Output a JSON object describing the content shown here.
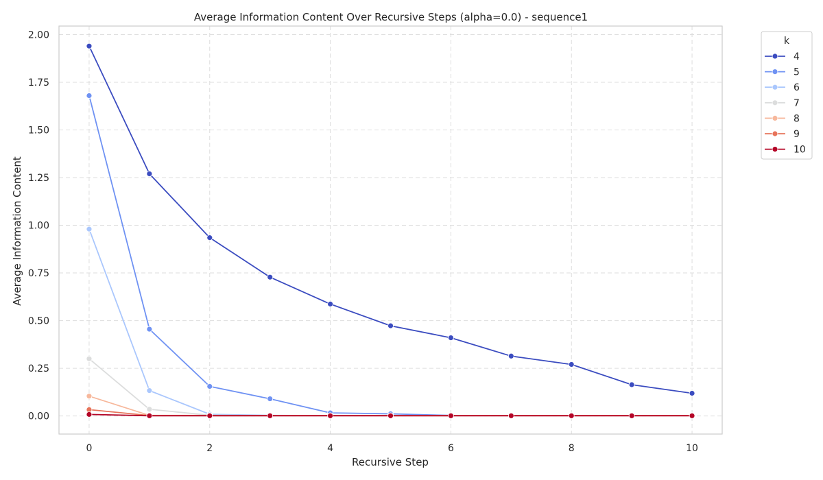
{
  "chart_data": {
    "type": "line",
    "title": "Average Information Content Over Recursive Steps (alpha=0.0) - sequence1",
    "xlabel": "Recursive Step",
    "ylabel": "Average Information Content",
    "xlim": [
      -0.5,
      10.5
    ],
    "ylim": [
      -0.095,
      2.045
    ],
    "x_ticks": [
      0,
      2,
      4,
      6,
      8,
      10
    ],
    "y_ticks": [
      0.0,
      0.25,
      0.5,
      0.75,
      1.0,
      1.25,
      1.5,
      1.75,
      2.0
    ],
    "y_tick_labels": [
      "0.00",
      "0.25",
      "0.50",
      "0.75",
      "1.00",
      "1.25",
      "1.50",
      "1.75",
      "2.00"
    ],
    "grid": true,
    "legend": {
      "title": "k",
      "placement": "outside-top-right"
    },
    "x": [
      0,
      1,
      2,
      3,
      4,
      5,
      6,
      7,
      8,
      9,
      10
    ],
    "series": [
      {
        "name": "4",
        "color": "#3b4cc0",
        "values": [
          1.94,
          1.27,
          0.935,
          0.728,
          0.587,
          0.473,
          0.41,
          0.314,
          0.27,
          0.164,
          0.119
        ]
      },
      {
        "name": "5",
        "color": "#6f92f3",
        "values": [
          1.68,
          0.455,
          0.155,
          0.09,
          0.016,
          0.011,
          0.003,
          0.002,
          0.002,
          0.002,
          0.002
        ]
      },
      {
        "name": "6",
        "color": "#aac7fd",
        "values": [
          0.98,
          0.133,
          0.009,
          0.003,
          0.002,
          0.002,
          0.002,
          0.002,
          0.002,
          0.002,
          0.002
        ]
      },
      {
        "name": "7",
        "color": "#dcdddd",
        "values": [
          0.3,
          0.035,
          0.004,
          0.002,
          0.002,
          0.002,
          0.002,
          0.002,
          0.002,
          0.002,
          0.002
        ]
      },
      {
        "name": "8",
        "color": "#f7b89c",
        "values": [
          0.104,
          0.003,
          0.003,
          0.002,
          0.002,
          0.002,
          0.002,
          0.002,
          0.002,
          0.002,
          0.002
        ]
      },
      {
        "name": "9",
        "color": "#e7745b",
        "values": [
          0.033,
          0.002,
          0.002,
          0.002,
          0.002,
          0.002,
          0.002,
          0.002,
          0.002,
          0.002,
          0.002
        ]
      },
      {
        "name": "10",
        "color": "#b40426",
        "values": [
          0.008,
          0.001,
          0.001,
          0.001,
          0.001,
          0.001,
          0.001,
          0.001,
          0.001,
          0.001,
          0.001
        ]
      }
    ]
  }
}
